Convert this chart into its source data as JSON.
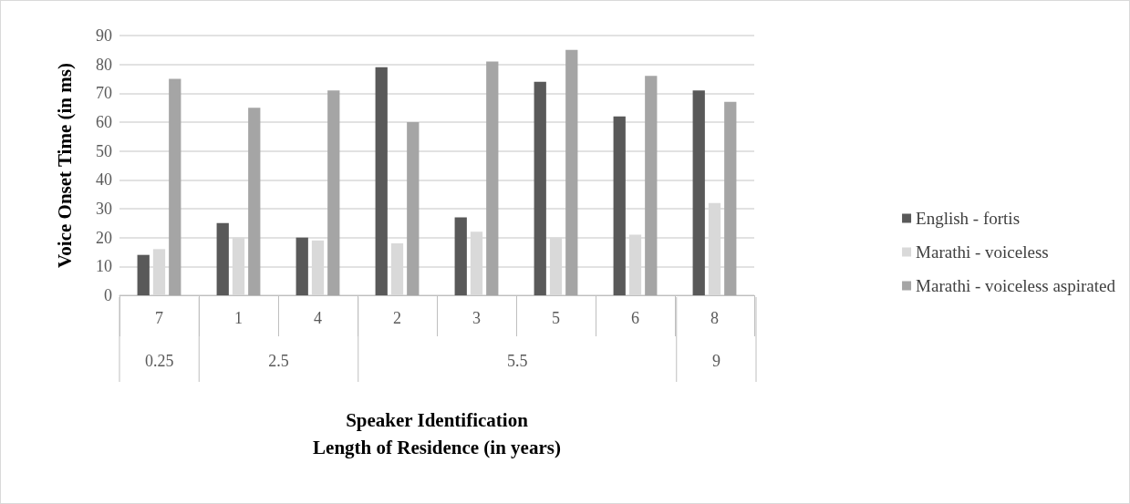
{
  "chart_data": {
    "type": "bar",
    "xlabel": "Speaker Identification\nLength of Residence (in years)",
    "ylabel": "Voice Onset Time (in ms)",
    "categories": [
      "7",
      "1",
      "4",
      "2",
      "3",
      "5",
      "6",
      "8"
    ],
    "series": [
      {
        "name": "English - fortis",
        "color": "#595959",
        "values": [
          14,
          25,
          20,
          79,
          27,
          74,
          62,
          71
        ]
      },
      {
        "name": "Marathi - voiceless",
        "color": "#d9d9d9",
        "values": [
          16,
          20,
          19,
          18,
          22,
          20,
          21,
          32
        ]
      },
      {
        "name": "Marathi - voiceless aspirated",
        "color": "#a5a5a5",
        "values": [
          75,
          65,
          71,
          60,
          81,
          85,
          76,
          67
        ]
      }
    ],
    "annotations": [
      "0.25",
      "2.5",
      "5.5",
      "9"
    ],
    "ylim": [
      0,
      90
    ],
    "yticks": [
      0,
      10,
      20,
      30,
      40,
      50,
      60,
      70,
      80,
      90
    ],
    "grid": "y",
    "legend": "right"
  }
}
